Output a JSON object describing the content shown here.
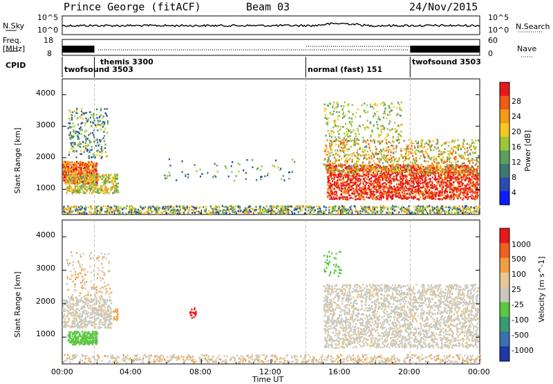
{
  "header": {
    "title": "Prince George (fitACF)",
    "beam": "Beam 03",
    "date": "24/Nov/2015"
  },
  "noise_panel": {
    "left_label": "N.Sky",
    "right_label": "N.Search",
    "left_ticks": [
      "10^5",
      "10^0"
    ],
    "right_ticks": [
      "10^5",
      "10^0"
    ]
  },
  "freq_panel": {
    "left_label_1": "Freq.",
    "left_label_2": "[MHz]",
    "right_label": "Nave",
    "left_ticks": [
      "18",
      "8"
    ],
    "right_ticks": [
      "60",
      "0"
    ]
  },
  "cpid": {
    "label": "CPID",
    "segments": [
      {
        "start": 0,
        "end": 1.85,
        "name": "twofsound 3503"
      },
      {
        "start": 1.85,
        "end": 14.0,
        "name": "themis 3300"
      },
      {
        "start": 14.0,
        "end": 20.0,
        "name": "normal (fast) 151"
      },
      {
        "start": 20.0,
        "end": 24.0,
        "name": "twofsound 3503"
      }
    ]
  },
  "chart_data": [
    {
      "type": "heatmap",
      "ylabel": "Slant Range [km]",
      "x_range_hours": [
        0,
        24
      ],
      "ylim": [
        200,
        4500
      ],
      "yticks": [
        "4000",
        "3000",
        "2000",
        "1000"
      ],
      "colorbar": {
        "label": "Power [dB]",
        "ticks": [
          "28",
          "24",
          "20",
          "16",
          "12",
          "8",
          "4"
        ],
        "range": [
          0,
          32
        ]
      }
    },
    {
      "type": "heatmap",
      "ylabel": "Slant Range [km]",
      "x_range_hours": [
        0,
        24
      ],
      "ylim": [
        200,
        4500
      ],
      "yticks": [
        "4000",
        "3000",
        "2000",
        "1000"
      ],
      "colorbar": {
        "label": "Velocity [m s^-1]",
        "ticks": [
          "1000",
          "500",
          "100",
          "25",
          "-25",
          "-100",
          "-500",
          "-1000"
        ]
      }
    }
  ],
  "x_axis": {
    "ticks": [
      "00:00",
      "04:00",
      "08:00",
      "12:00",
      "16:00",
      "20:00",
      "00:00"
    ],
    "label": "Time UT"
  },
  "colors": {
    "power_scale": [
      "#0a1dff",
      "#2a4bb0",
      "#3a7a70",
      "#5aa060",
      "#9ac838",
      "#f6c81e",
      "#f59a18",
      "#f05a18",
      "#e81818"
    ],
    "velocity_scale": [
      "#2038a8",
      "#3a70b0",
      "#3a9a70",
      "#5ac840",
      "#c8c8c0",
      "#e8c890",
      "#f0a040",
      "#f06020",
      "#e81818"
    ]
  }
}
